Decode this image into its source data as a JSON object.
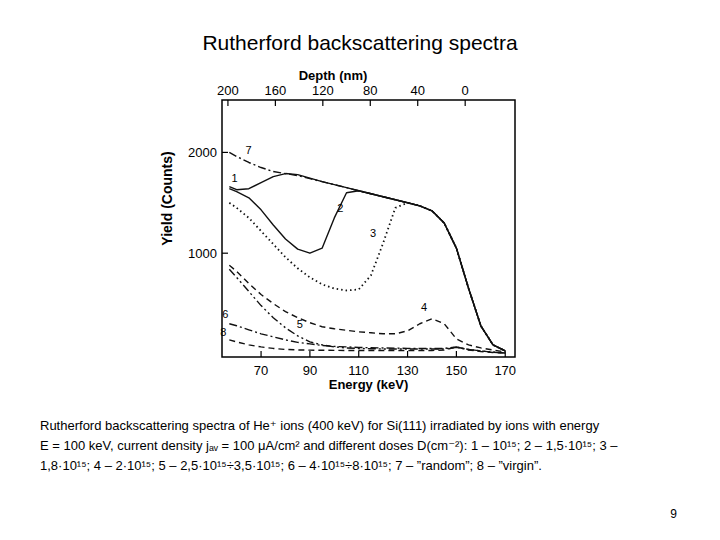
{
  "chart_data": {
    "type": "line",
    "title": "Rutherford backscattering spectra",
    "xlabel": "Energy (keV)",
    "ylabel": "Yield (Counts)",
    "x2label": "Depth (nm)",
    "xlim": [
      54,
      174
    ],
    "xticks": [
      70,
      90,
      110,
      130,
      150,
      170
    ],
    "x2lim": [
      205,
      -42
    ],
    "x2ticks": [
      200,
      160,
      120,
      80,
      40,
      0
    ],
    "ylim": [
      -30,
      2520
    ],
    "yticks": [
      1000,
      2000
    ],
    "grid": false,
    "x": [
      57,
      60,
      65,
      70,
      75,
      80,
      85,
      90,
      95,
      100,
      105,
      110,
      115,
      120,
      125,
      130,
      135,
      140,
      145,
      150,
      155,
      160,
      165,
      170
    ],
    "series": [
      {
        "name": "1",
        "color": "#111111",
        "line_style": "solid",
        "values": [
          1660,
          1630,
          1640,
          1700,
          1760,
          1790,
          1780,
          1745,
          1710,
          1680,
          1650,
          1620,
          1590,
          1560,
          1530,
          1500,
          1470,
          1420,
          1300,
          1050,
          650,
          280,
          90,
          30
        ]
      },
      {
        "name": "2",
        "color": "#111111",
        "line_style": "solid",
        "values": [
          1640,
          1610,
          1550,
          1430,
          1280,
          1140,
          1040,
          1000,
          1050,
          1350,
          1600,
          1620,
          1590,
          1560,
          1530,
          1500,
          1470,
          1420,
          1300,
          1050,
          650,
          280,
          90,
          30
        ]
      },
      {
        "name": "3",
        "color": "#111111",
        "line_style": "dotted",
        "values": [
          1500,
          1450,
          1350,
          1220,
          1090,
          960,
          850,
          760,
          690,
          650,
          630,
          640,
          780,
          1100,
          1450,
          1500,
          1470,
          1420,
          1300,
          1050,
          650,
          280,
          90,
          30
        ]
      },
      {
        "name": "4",
        "color": "#111111",
        "line_style": "dashed",
        "values": [
          880,
          820,
          700,
          590,
          500,
          420,
          360,
          310,
          270,
          250,
          235,
          220,
          210,
          200,
          200,
          230,
          300,
          350,
          300,
          150,
          90,
          60,
          40,
          20
        ]
      },
      {
        "name": "5",
        "color": "#111111",
        "line_style": "dashdotdot",
        "values": [
          840,
          760,
          620,
          480,
          360,
          260,
          180,
          120,
          90,
          70,
          60,
          55,
          52,
          50,
          50,
          50,
          50,
          50,
          50,
          65,
          45,
          30,
          18,
          10
        ]
      },
      {
        "name": "6",
        "color": "#111111",
        "line_style": "dashdot",
        "values": [
          300,
          280,
          240,
          200,
          170,
          140,
          115,
          100,
          85,
          75,
          70,
          65,
          62,
          60,
          58,
          56,
          55,
          55,
          55,
          70,
          45,
          30,
          18,
          10
        ]
      },
      {
        "name": "7",
        "color": "#111111",
        "line_style": "dashdot",
        "values": [
          2000,
          1960,
          1900,
          1850,
          1810,
          1790,
          1770,
          1740,
          1710,
          1680,
          1650,
          1620,
          1590,
          1560,
          1530,
          1500,
          1470,
          1420,
          1300,
          1050,
          650,
          280,
          90,
          30
        ]
      },
      {
        "name": "8",
        "color": "#111111",
        "line_style": "dashed",
        "values": [
          140,
          120,
          90,
          70,
          55,
          45,
          40,
          38,
          37,
          36,
          35,
          35,
          35,
          35,
          35,
          35,
          35,
          35,
          40,
          70,
          40,
          25,
          15,
          10
        ]
      }
    ]
  },
  "caption": [
    "Rutherford backscattering spectra of He⁺ ions (400 keV) for Si(111) irradiated  by ions with energy",
    "E = 100 keV, current density jₐᵥ = 100 μA/cm² and different doses D(cm⁻²): 1 – 10¹⁵; 2 – 1,5·10¹⁵; 3 –",
    "1,8·10¹⁵; 4 – 2·10¹⁵; 5 – 2,5·10¹⁵÷3,5·10¹⁵; 6 – 4·10¹⁵÷8·10¹⁵; 7 – ”random”; 8 – ”virgin”."
  ],
  "page_number": "9"
}
